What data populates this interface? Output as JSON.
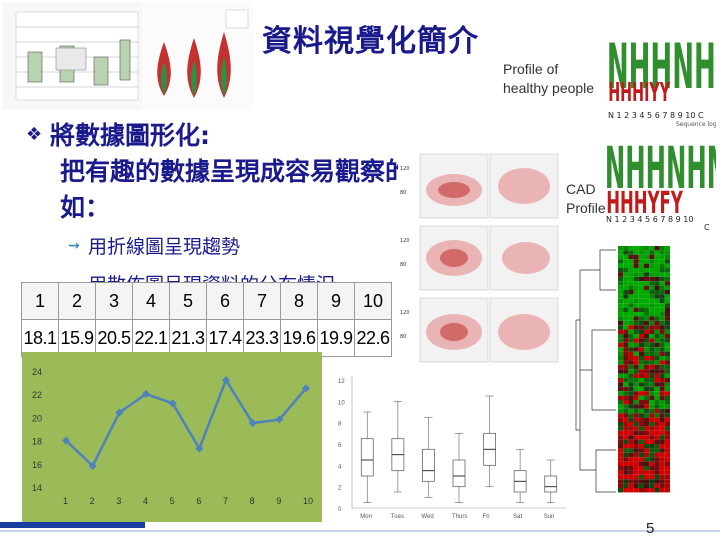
{
  "title": "資料視覺化簡介",
  "caption_healthy": [
    "Profile of",
    "healthy people"
  ],
  "caption_cad": [
    "CAD",
    "Profile"
  ],
  "bullet_main": [
    "將數據圖形化:",
    "把有趣的數據呈現成容易觀察的知識，例",
    "如："
  ],
  "sub_bullets": [
    "用折線圖呈現趨勢",
    "用散佈圖呈現資料的分布情況"
  ],
  "table": {
    "header": [
      "1",
      "2",
      "3",
      "4",
      "5",
      "6",
      "7",
      "8",
      "9",
      "10"
    ],
    "values": [
      "18.1",
      "15.9",
      "20.5",
      "22.1",
      "21.3",
      "17.4",
      "23.3",
      "19.6",
      "19.9",
      "22.6"
    ]
  },
  "page_number": "5",
  "chart_data": [
    {
      "type": "line",
      "x": [
        1,
        2,
        3,
        4,
        5,
        6,
        7,
        8,
        9,
        10
      ],
      "y": [
        18.1,
        15.9,
        20.5,
        22.1,
        21.3,
        17.4,
        23.3,
        19.6,
        19.9,
        22.6
      ],
      "x_ticks": [
        "1",
        "2",
        "3",
        "4",
        "5",
        "6",
        "7",
        "8",
        "9",
        "10"
      ],
      "y_ticks": [
        "14",
        "16",
        "18",
        "20",
        "22",
        "24"
      ],
      "ylim": [
        14,
        24
      ],
      "background": "#9bbb59",
      "line_color": "#4f81bd"
    },
    {
      "type": "box",
      "categories": [
        "Mon",
        "Tues",
        "Wed",
        "Thurs",
        "Fri",
        "Sat",
        "Sun"
      ],
      "y_ticks": [
        "0",
        "2",
        "4",
        "6",
        "8",
        "10",
        "12"
      ],
      "ylim": [
        0,
        12
      ],
      "boxes": [
        {
          "min": 0.5,
          "q1": 3.0,
          "median": 4.5,
          "q3": 6.5,
          "max": 9.0
        },
        {
          "min": 1.5,
          "q1": 3.5,
          "median": 5.0,
          "q3": 6.5,
          "max": 10.0
        },
        {
          "min": 1.0,
          "q1": 2.5,
          "median": 3.5,
          "q3": 5.5,
          "max": 8.5
        },
        {
          "min": 0.5,
          "q1": 2.0,
          "median": 3.0,
          "q3": 4.5,
          "max": 7.0
        },
        {
          "min": 2.0,
          "q1": 4.0,
          "median": 5.5,
          "q3": 7.0,
          "max": 10.5
        },
        {
          "min": 0.5,
          "q1": 1.5,
          "median": 2.5,
          "q3": 3.5,
          "max": 5.5
        },
        {
          "min": 0.5,
          "q1": 1.5,
          "median": 2.0,
          "q3": 3.0,
          "max": 4.5
        }
      ]
    }
  ],
  "colors": {
    "title": "#1a1a8c",
    "bar": "#1a3fa0",
    "heat_green": "#1f8a1f",
    "heat_red": "#c21a1a"
  }
}
